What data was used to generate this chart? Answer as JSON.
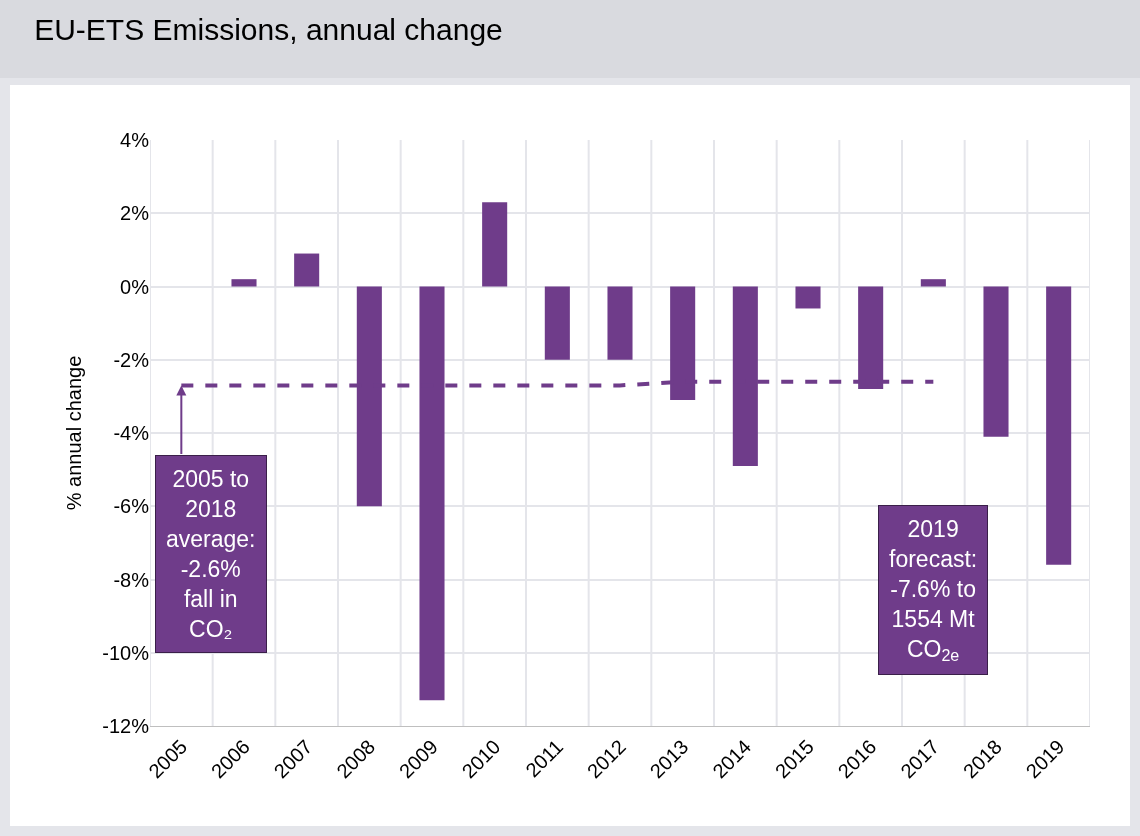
{
  "chart_data": {
    "type": "bar",
    "title": "EU-ETS Emissions, annual change",
    "ylabel": "% annual change",
    "categories": [
      "2005",
      "2006",
      "2007",
      "2008",
      "2009",
      "2010",
      "2011",
      "2012",
      "2013",
      "2014",
      "2015",
      "2016",
      "2017",
      "2018",
      "2019"
    ],
    "series": [
      {
        "color": "#6f3c8a",
        "values": [
          null,
          0.2,
          0.9,
          -6.0,
          -11.3,
          2.3,
          -2.0,
          -2.0,
          -3.1,
          -4.9,
          -0.6,
          -2.8,
          0.2,
          -4.1,
          -7.6
        ]
      },
      {
        "type": "line",
        "color": "#6f3c8a",
        "line_style": "dashed",
        "marker": "none",
        "values": [
          -2.7,
          -2.7,
          -2.7,
          -2.7,
          -2.7,
          -2.7,
          -2.7,
          -2.7,
          -2.6,
          -2.6,
          -2.6,
          -2.6,
          -2.6,
          null,
          null
        ]
      }
    ],
    "ylim": [
      -12,
      4
    ],
    "yticks": [
      {
        "value": -12,
        "label": "-12%"
      },
      {
        "value": -10,
        "label": "-10%"
      },
      {
        "value": -8,
        "label": "-8%"
      },
      {
        "value": -6,
        "label": "-6%"
      },
      {
        "value": -4,
        "label": "-4%"
      },
      {
        "value": -2,
        "label": "-2%"
      },
      {
        "value": 0,
        "label": "0%"
      },
      {
        "value": 2,
        "label": "2%"
      },
      {
        "value": 4,
        "label": "4%"
      }
    ],
    "grid": true,
    "annotations": [
      {
        "text": "2005 to\n2018\naverage:\n-2.6%\nfall in\nCO₂",
        "x": "2005",
        "y": -2.7
      },
      "2019\nforecast:\n-7.6% to\n1554 Mt\nCO$_{2e}$"
    ]
  }
}
